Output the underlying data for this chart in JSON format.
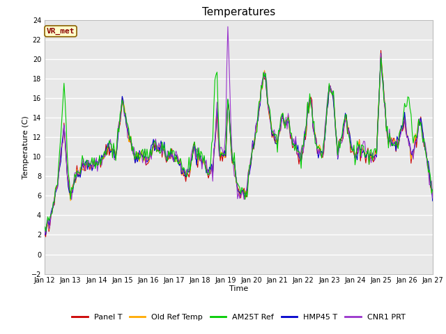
{
  "title": "Temperatures",
  "xlabel": "Time",
  "ylabel": "Temperature (C)",
  "ylim": [
    -2,
    24
  ],
  "xlim": [
    0,
    360
  ],
  "background_color": "#e8e8e8",
  "plot_bg_color": "#e8e8e8",
  "grid_color": "white",
  "annotation_text": "VR_met",
  "annotation_bg": "#ffffcc",
  "annotation_edge": "#8b6000",
  "series_colors": [
    "#cc0000",
    "#ffaa00",
    "#00cc00",
    "#0000cc",
    "#9933cc"
  ],
  "series_names": [
    "Panel T",
    "Old Ref Temp",
    "AM25T Ref",
    "HMP45 T",
    "CNR1 PRT"
  ],
  "tick_labels": [
    "Jan 12",
    "Jan 13",
    "Jan 14",
    "Jan 15",
    "Jan 16",
    "Jan 17",
    "Jan 18",
    "Jan 19",
    "Jan 20",
    "Jan 21",
    "Jan 22",
    "Jan 23",
    "Jan 24",
    "Jan 25",
    "Jan 26",
    "Jan 27"
  ],
  "tick_positions": [
    0,
    24,
    48,
    72,
    96,
    120,
    144,
    168,
    192,
    216,
    240,
    264,
    288,
    312,
    336,
    360
  ],
  "yticks": [
    -2,
    0,
    2,
    4,
    6,
    8,
    10,
    12,
    14,
    16,
    18,
    20,
    22,
    24
  ],
  "title_fontsize": 11,
  "tick_fontsize": 7,
  "label_fontsize": 8,
  "legend_fontsize": 8
}
